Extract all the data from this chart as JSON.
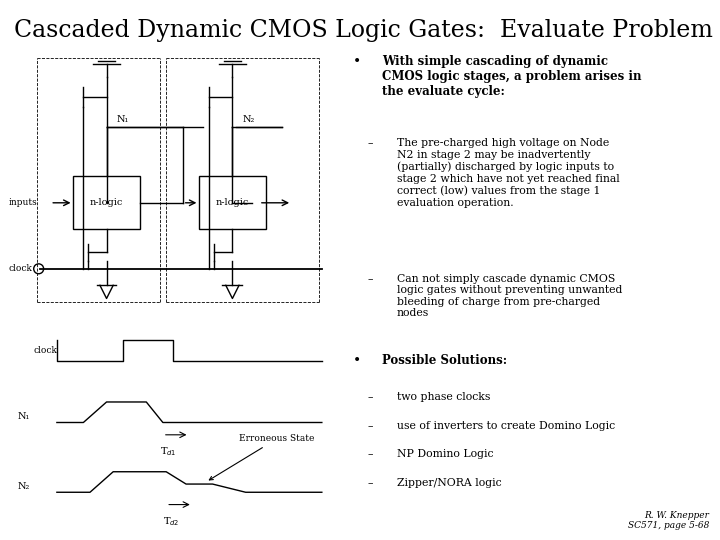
{
  "title": "Cascaded Dynamic CMOS Logic Gates:  Evaluate Problem",
  "title_fontsize": 17,
  "background_color": "#ffffff",
  "bullet1_bold": "With simple cascading of dynamic CMOS logic stages, a problem arises in the evaluate cycle:",
  "sub1_line1": "The pre-charged high voltage on Node",
  "sub1_line2": "N2 in stage 2 may be inadvertently",
  "sub1_line3": "(partially) discharged by logic inputs to",
  "sub1_line4": "stage 2 which have not yet reached final",
  "sub1_line5": "correct (low) values from the stage 1",
  "sub1_line6": "evaluation operation.",
  "sub2_line1": "Can not simply cascade dynamic CMOS",
  "sub2_line2": "logic gates without preventing unwanted",
  "sub2_line3": "bleeding of charge from pre-charged",
  "sub2_line4": "nodes",
  "bullet2_bold": "Possible Solutions:",
  "sol1": "two phase clocks",
  "sol2": "use of inverters to create Domino Logic",
  "sol3": "NP Domino Logic",
  "sol4": "Zipper/NORA logic",
  "footer1": "R. W. Knepper",
  "footer2": "SC571, page 5-68",
  "text_color": "#000000"
}
